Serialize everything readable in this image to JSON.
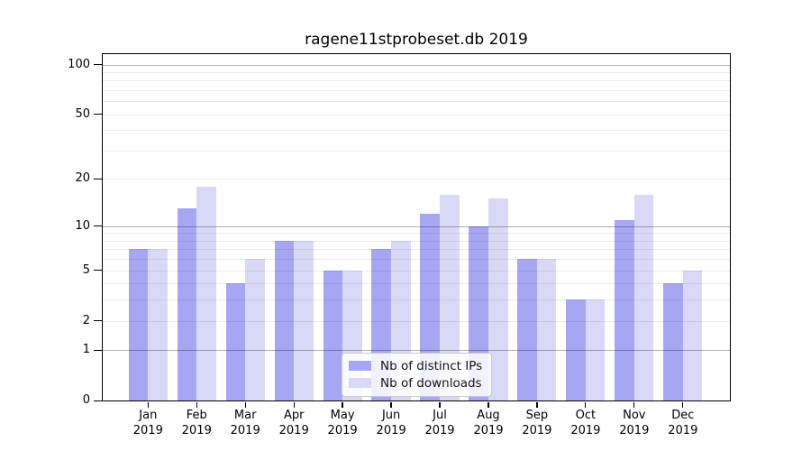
{
  "title": "ragene11stprobeset.db 2019",
  "colors": {
    "background": "#ffffff",
    "axis": "#000000",
    "ips_bar": "#a6a6f3",
    "downloads_bar": "#d9d9f7",
    "major_gridline": "rgba(0,0,0,0.30)",
    "minor_gridline": "rgba(0,0,0,0.08)",
    "legend_border": "#cbcbcb",
    "legend_background": "rgba(255,255,255,0.85)",
    "text": "#000000"
  },
  "legend": {
    "position": "lower center",
    "items": [
      {
        "label": "Nb of distinct IPs",
        "color": "#a6a6f3"
      },
      {
        "label": "Nb of downloads",
        "color": "#d9d9f7"
      }
    ]
  },
  "chart_data": {
    "type": "bar",
    "title": "ragene11stprobeset.db 2019",
    "categories": [
      "Jan 2019",
      "Feb 2019",
      "Mar 2019",
      "Apr 2019",
      "May 2019",
      "Jun 2019",
      "Jul 2019",
      "Aug 2019",
      "Sep 2019",
      "Oct 2019",
      "Nov 2019",
      "Dec 2019"
    ],
    "month_labels": [
      "Jan",
      "Feb",
      "Mar",
      "Apr",
      "May",
      "Jun",
      "Jul",
      "Aug",
      "Sep",
      "Oct",
      "Nov",
      "Dec"
    ],
    "year_label": "2019",
    "series": [
      {
        "name": "Nb of distinct IPs",
        "values": [
          7,
          13,
          4,
          8,
          5,
          7,
          12,
          10,
          6,
          3,
          11,
          4
        ]
      },
      {
        "name": "Nb of downloads",
        "values": [
          7,
          18,
          6,
          8,
          5,
          8,
          16,
          15,
          6,
          3,
          16,
          5
        ]
      }
    ],
    "xlabel": "",
    "ylabel": "",
    "y_scale": "log10(1+y)",
    "y_tick_values": [
      0,
      1,
      2,
      5,
      10,
      20,
      50,
      100
    ],
    "y_major_gridlines": [
      1,
      10,
      100
    ],
    "y_minor_gridlines": [
      2,
      3,
      4,
      5,
      6,
      7,
      8,
      9,
      20,
      30,
      40,
      50,
      60,
      70,
      80,
      90
    ],
    "ylim": [
      0,
      117
    ],
    "grid": true,
    "legend_position": "lower center"
  }
}
